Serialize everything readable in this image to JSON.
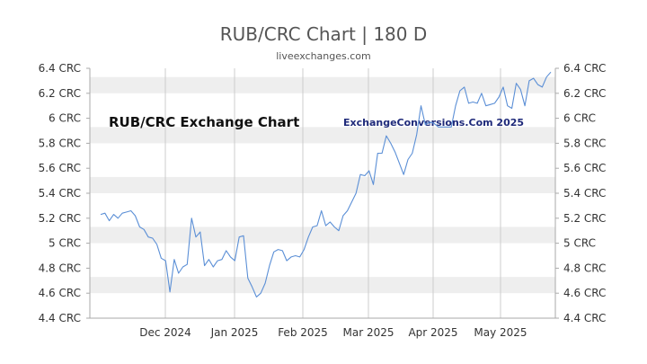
{
  "chart_data": {
    "type": "line",
    "title": "RUB/CRC Chart | 180 D",
    "subtitle": "liveexchanges.com",
    "annotations": [
      "RUB/CRC Exchange Chart",
      "ExchangeConversions.Com 2025"
    ],
    "y_ticks": [
      "6.4 CRC",
      "6.2 CRC",
      "6 CRC",
      "5.8 CRC",
      "5.6 CRC",
      "5.4 CRC",
      "5.2 CRC",
      "5 CRC",
      "4.8 CRC",
      "4.6 CRC",
      "4.4 CRC"
    ],
    "x_ticks": [
      "Dec 2024",
      "Jan 2025",
      "Feb 2025",
      "Mar 2025",
      "Apr 2025",
      "May 2025"
    ],
    "ylim": [
      4.4,
      6.4
    ],
    "grid": true,
    "colors": {
      "line": "#5b8fd6",
      "band": "#eeeeee",
      "grid": "#cccccc"
    },
    "series": [
      {
        "values": [
          5.23,
          5.24,
          5.18,
          5.23,
          5.2,
          5.24,
          5.25,
          5.26,
          5.22,
          5.13,
          5.11,
          5.05,
          5.04,
          4.99,
          4.88,
          4.86,
          4.61,
          4.87,
          4.76,
          4.81,
          4.83,
          5.2,
          5.05,
          5.09,
          4.82,
          4.87,
          4.81,
          4.86,
          4.87,
          4.94,
          4.89,
          4.86,
          5.05,
          5.06,
          4.72,
          4.65,
          4.57,
          4.6,
          4.68,
          4.82,
          4.93,
          4.95,
          4.94,
          4.86,
          4.89,
          4.9,
          4.89,
          4.95,
          5.05,
          5.13,
          5.14,
          5.26,
          5.14,
          5.17,
          5.13,
          5.1,
          5.22,
          5.26,
          5.33,
          5.4,
          5.55,
          5.54,
          5.58,
          5.47,
          5.72,
          5.72,
          5.86,
          5.8,
          5.73,
          5.64,
          5.55,
          5.67,
          5.72,
          5.87,
          6.1,
          5.95,
          5.97,
          5.96,
          5.93,
          5.93,
          5.93,
          5.93,
          6.1,
          6.22,
          6.25,
          6.12,
          6.13,
          6.12,
          6.2,
          6.1,
          6.11,
          6.12,
          6.17,
          6.25,
          6.1,
          6.08,
          6.28,
          6.23,
          6.1,
          6.3,
          6.32,
          6.27,
          6.25,
          6.33,
          6.37
        ]
      }
    ]
  }
}
